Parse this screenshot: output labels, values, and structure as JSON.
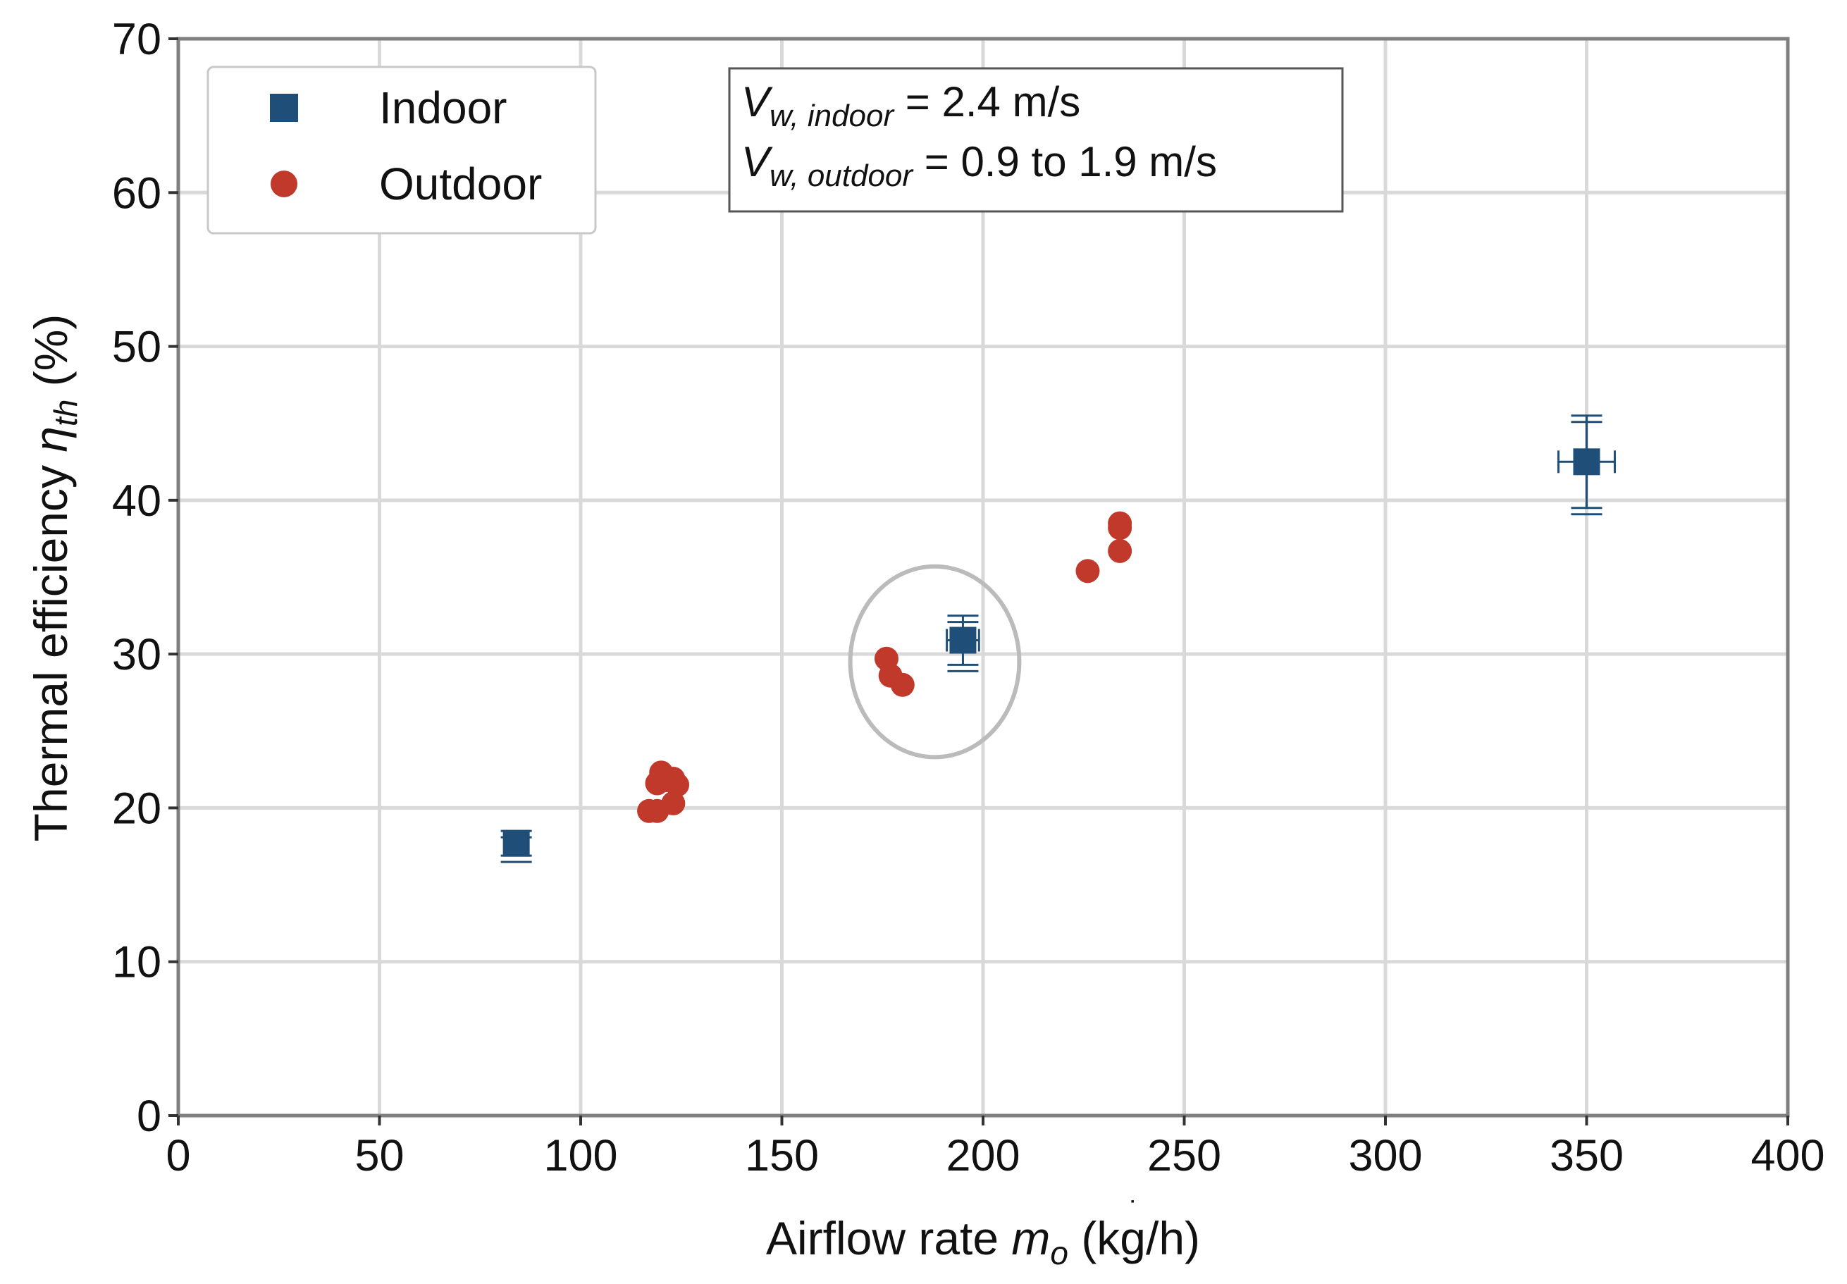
{
  "chart_data": {
    "type": "scatter",
    "xlabel": {
      "main": "Airflow rate ",
      "symbol": "m",
      "sub": "o",
      "unit": " (kg/h)"
    },
    "ylabel": {
      "main": "Thermal efficiency ",
      "symbol": "η",
      "sub": "th",
      "unit": " (%)"
    },
    "xlim": [
      0,
      400
    ],
    "ylim": [
      0,
      70
    ],
    "x_ticks": [
      0,
      50,
      100,
      150,
      200,
      250,
      300,
      350,
      400
    ],
    "y_ticks": [
      0,
      10,
      20,
      30,
      40,
      50,
      60,
      70
    ],
    "grid": true,
    "legend_position": "top-left",
    "series": [
      {
        "name": "Indoor",
        "marker": "square",
        "color": "#1f4e79",
        "points": [
          {
            "x": 84,
            "y": 17.7,
            "xerr": 3,
            "yerr": 0.8
          },
          {
            "x": 195,
            "y": 30.9,
            "xerr": 4,
            "yerr": 1.6
          },
          {
            "x": 350,
            "y": 42.5,
            "xerr": 7,
            "yerr": 3.0
          }
        ]
      },
      {
        "name": "Outdoor",
        "marker": "circle",
        "color": "#c0392b",
        "points": [
          {
            "x": 117,
            "y": 19.8
          },
          {
            "x": 119,
            "y": 19.8
          },
          {
            "x": 119,
            "y": 21.6
          },
          {
            "x": 120,
            "y": 22.3
          },
          {
            "x": 121,
            "y": 21.8
          },
          {
            "x": 123,
            "y": 20.3
          },
          {
            "x": 123,
            "y": 21.9
          },
          {
            "x": 124,
            "y": 21.5
          },
          {
            "x": 176,
            "y": 29.7
          },
          {
            "x": 177,
            "y": 28.6
          },
          {
            "x": 180,
            "y": 28.0
          },
          {
            "x": 226,
            "y": 35.4
          },
          {
            "x": 234,
            "y": 36.7
          },
          {
            "x": 234,
            "y": 38.2
          },
          {
            "x": 234,
            "y": 38.5
          }
        ]
      }
    ],
    "annotations": {
      "lines": [
        {
          "symbol": "V",
          "sub": "w, indoor",
          "text": " = 2.4 m/s"
        },
        {
          "symbol": "V",
          "sub": "w, outdoor",
          "text": " = 0.9 to 1.9 m/s"
        }
      ],
      "highlight_circle": {
        "cx": 188,
        "cy": 29.5,
        "rx": 21,
        "ry": 6.2,
        "color": "#bbbbbb"
      }
    }
  }
}
